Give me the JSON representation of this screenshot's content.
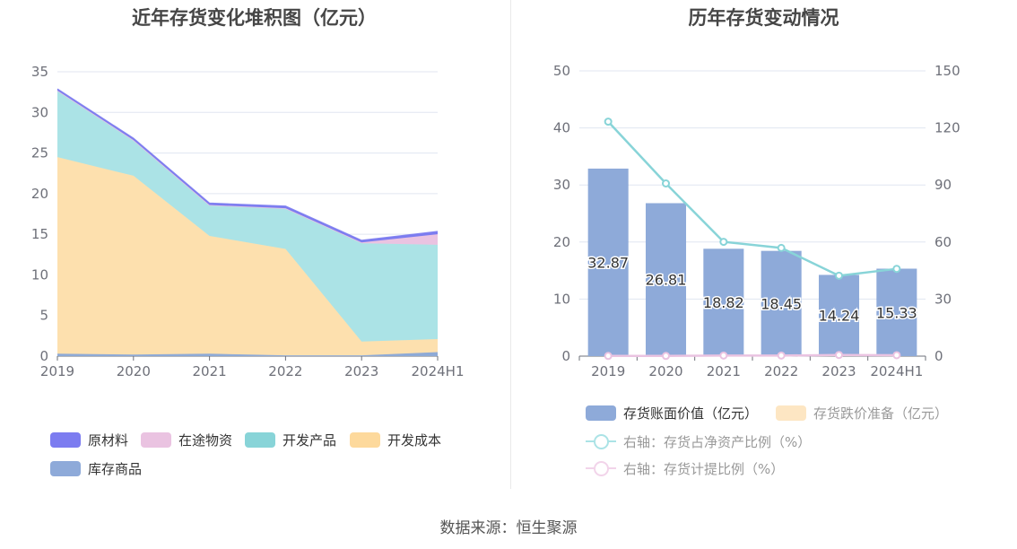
{
  "left_chart": {
    "title": "近年存货变化堆积图（亿元）",
    "legend": [
      "原材料",
      "在途物资",
      "开发产品",
      "开发成本",
      "库存商品"
    ]
  },
  "right_chart": {
    "title": "历年存货变动情况",
    "legend": [
      "存货账面价值（亿元）",
      "存货跌价准备（亿元）",
      "右轴：存货占净资产比例（%）",
      "右轴：存货计提比例（%）"
    ]
  },
  "source": "数据来源：恒生聚源",
  "chart_data": [
    {
      "type": "area",
      "title": "近年存货变化堆积图（亿元）",
      "stacked": true,
      "categories": [
        "2019",
        "2020",
        "2021",
        "2022",
        "2023",
        "2024H1"
      ],
      "ylim": [
        0,
        35
      ],
      "yticks": [
        0,
        5,
        10,
        15,
        20,
        25,
        30,
        35
      ],
      "grid": true,
      "legend_position": "bottom",
      "series": [
        {
          "name": "库存商品",
          "color": "#8eaad6",
          "values": [
            0.3,
            0.2,
            0.3,
            0.1,
            0.1,
            0.5
          ]
        },
        {
          "name": "开发成本",
          "color": "#fde0ae",
          "values": [
            24.2,
            22.0,
            14.5,
            13.1,
            1.7,
            1.6
          ]
        },
        {
          "name": "开发产品",
          "color": "#abe3e6",
          "values": [
            8.2,
            4.4,
            3.8,
            5.0,
            12.1,
            11.6
          ]
        },
        {
          "name": "在途物资",
          "color": "#eac3e1",
          "values": [
            0.0,
            0.0,
            0.0,
            0.0,
            0.1,
            1.3
          ]
        },
        {
          "name": "原材料",
          "color": "#7c7cf0",
          "values": [
            0.17,
            0.21,
            0.22,
            0.25,
            0.24,
            0.33
          ]
        }
      ]
    },
    {
      "type": "bar",
      "title": "历年存货变动情况",
      "categories": [
        "2019",
        "2020",
        "2021",
        "2022",
        "2023",
        "2024H1"
      ],
      "ylim": [
        0,
        50
      ],
      "yticks": [
        0,
        10,
        20,
        30,
        40,
        50
      ],
      "y2lim": [
        0,
        150
      ],
      "y2ticks": [
        0,
        30,
        60,
        90,
        120,
        150
      ],
      "grid": true,
      "legend_position": "bottom",
      "series": [
        {
          "name": "存货账面价值（亿元）",
          "type": "bar",
          "axis": "left",
          "color": "#8eaad9",
          "values": [
            32.87,
            26.81,
            18.82,
            18.45,
            14.24,
            15.33
          ],
          "labels": [
            "32.87",
            "26.81",
            "18.82",
            "18.45",
            "14.24",
            "15.33"
          ]
        },
        {
          "name": "存货跌价准备（亿元）",
          "type": "bar",
          "axis": "left",
          "color": "#fde6c3",
          "values": [
            0,
            0,
            0,
            0,
            0,
            0
          ]
        },
        {
          "name": "右轴：存货占净资产比例（%）",
          "type": "line",
          "axis": "right",
          "color": "#88d4d8",
          "values": [
            123.3,
            90.8,
            60.1,
            56.9,
            42.3,
            45.9
          ]
        },
        {
          "name": "右轴：存货计提比例（%）",
          "type": "line",
          "axis": "right",
          "color": "#eac3e1",
          "values": [
            0.1,
            0.1,
            0.3,
            0.3,
            0.6,
            0.5
          ]
        }
      ]
    }
  ]
}
